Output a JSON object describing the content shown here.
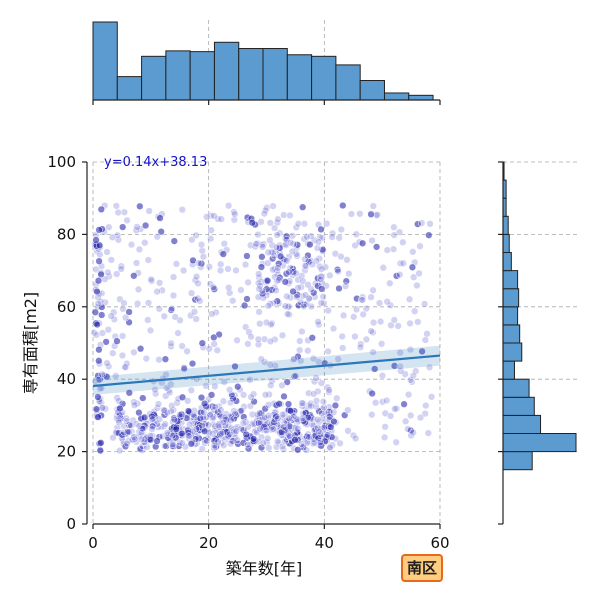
{
  "chart_data": {
    "type": "scatter",
    "title": "",
    "xlabel": "築年数[年]",
    "ylabel": "専有面積[m2]",
    "xlim": [
      0,
      60
    ],
    "ylim": [
      0,
      100
    ],
    "xticks": [
      0,
      20,
      40,
      60
    ],
    "yticks": [
      0,
      20,
      40,
      60,
      80,
      100
    ],
    "grid": true,
    "regression": {
      "label": "y=0.14x+38.13",
      "slope": 0.14,
      "intercept": 38.13,
      "x_range": [
        0,
        60
      ],
      "color": "#2a78b8"
    },
    "point_color": "#6a6ad8",
    "dark_point_color": "#1a1aa8",
    "bar_color": "#5b9bd0",
    "marginal_x": {
      "bin_edges": [
        0,
        4.2,
        8.4,
        12.6,
        16.8,
        21,
        25.2,
        29.4,
        33.6,
        37.8,
        42,
        46.2,
        50.4,
        54.6,
        58.8
      ],
      "counts": [
        100,
        30,
        56,
        63,
        62,
        74,
        66,
        66,
        58,
        56,
        45,
        25,
        9,
        6
      ]
    },
    "marginal_y": {
      "bin_edges": [
        15,
        20,
        25,
        30,
        35,
        40,
        45,
        50,
        55,
        60,
        65,
        70,
        75,
        80,
        85,
        90,
        95,
        100
      ],
      "counts": [
        28,
        70,
        36,
        30,
        25,
        11,
        18,
        16,
        14,
        15,
        14,
        8,
        6,
        5,
        3,
        3,
        1
      ]
    }
  },
  "badge": "南区"
}
